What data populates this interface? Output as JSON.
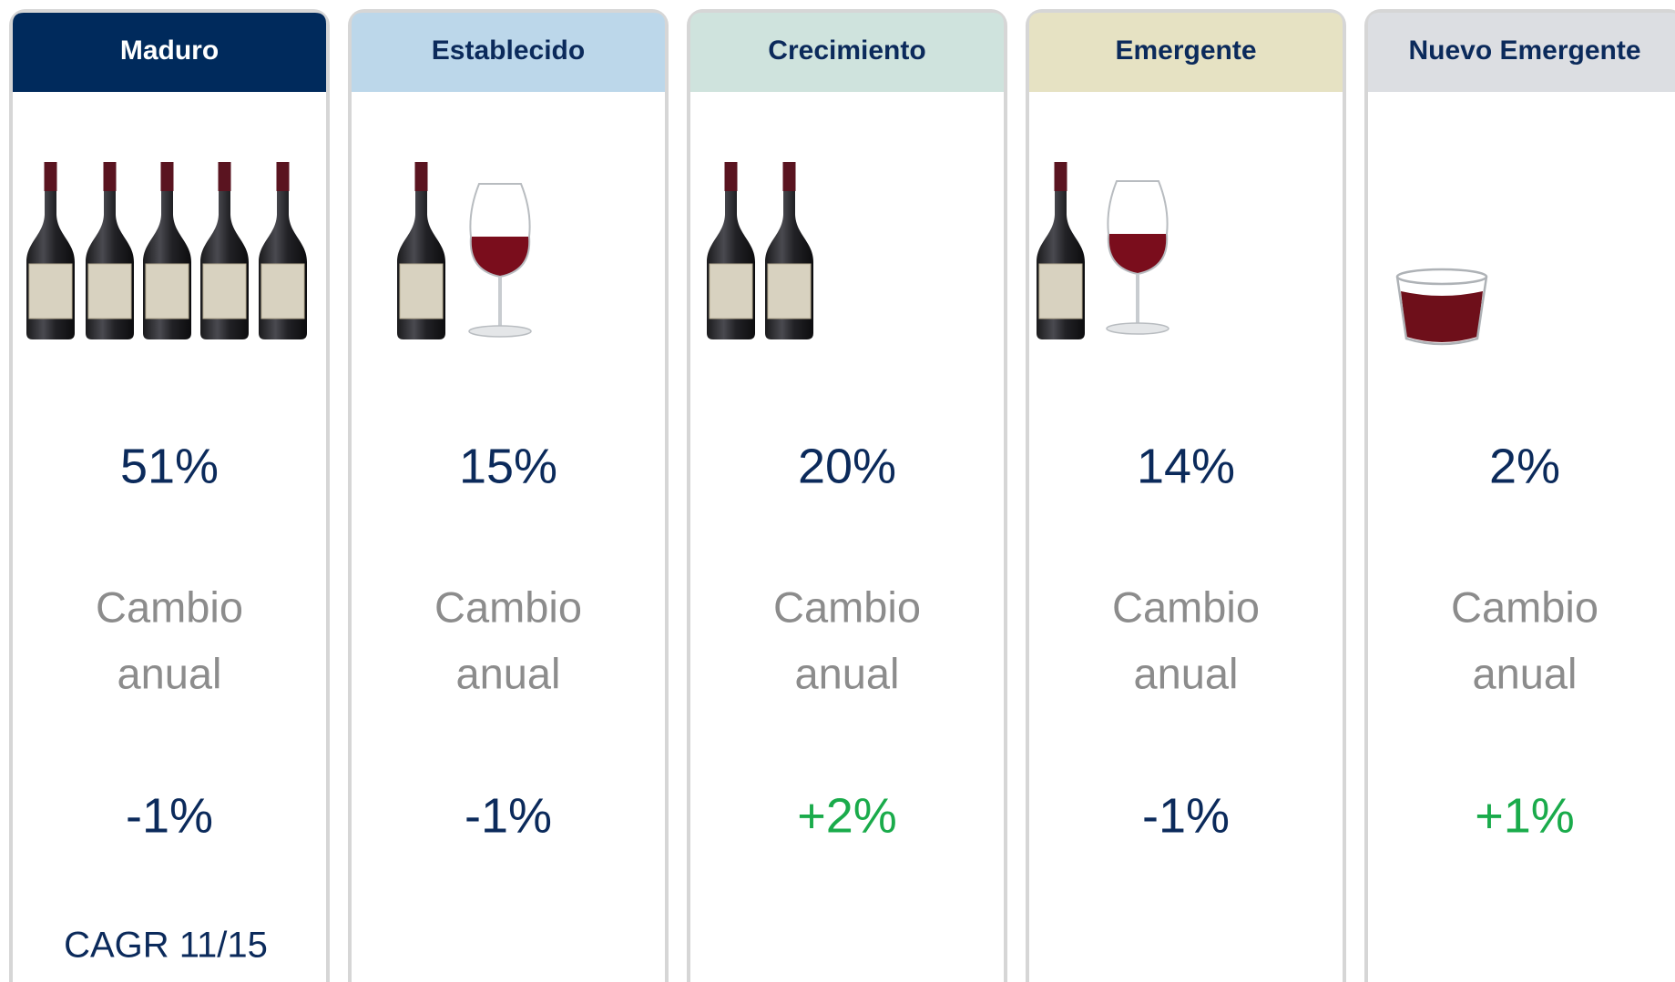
{
  "columns": [
    {
      "header": "Maduro",
      "header_bg": "#002a5c",
      "header_color": "#ffffff",
      "share": "51%",
      "change_label": [
        "Cambio",
        "anual"
      ],
      "change": "-1%",
      "change_color": "#0b2a5b"
    },
    {
      "header": "Establecido",
      "header_bg": "#bcd7ea",
      "header_color": "#0b2a5b",
      "share": "15%",
      "change_label": [
        "Cambio",
        "anual"
      ],
      "change": "-1%",
      "change_color": "#0b2a5b"
    },
    {
      "header": "Crecimiento",
      "header_bg": "#cfe3dd",
      "header_color": "#0b2a5b",
      "share": "20%",
      "change_label": [
        "Cambio",
        "anual"
      ],
      "change": "+2%",
      "change_color": "#1aab4b"
    },
    {
      "header": "Emergente",
      "header_bg": "#e6e2c3",
      "header_color": "#0b2a5b",
      "share": "14%",
      "change_label": [
        "Cambio",
        "anual"
      ],
      "change": "-1%",
      "change_color": "#0b2a5b"
    },
    {
      "header": "Nuevo Emergente",
      "header_bg": "#dcdee2",
      "header_color": "#0b2a5b",
      "share": "2%",
      "change_label": [
        "Cambio",
        "anual"
      ],
      "change": "+1%",
      "change_color": "#1aab4b"
    }
  ],
  "footnote": "CAGR 11/15"
}
